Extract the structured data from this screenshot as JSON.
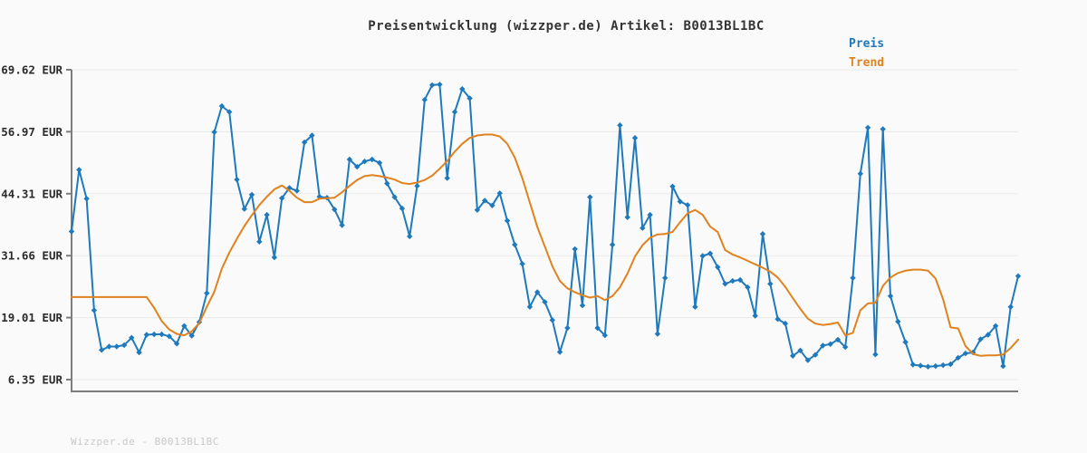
{
  "header": {
    "title": "Preisentwicklung (wizzper.de) Artikel: B0013BL1BC"
  },
  "legend": {
    "position": "top-right",
    "items": [
      {
        "label": "Preis",
        "color": "#1e79bd"
      },
      {
        "label": "Trend",
        "color": "#e0821e"
      }
    ]
  },
  "footer": {
    "watermark": "Wizzper.de - B0013BL1BC"
  },
  "colors": {
    "background": "#fafafa",
    "grid": "#e9e9e9",
    "axis": "#7d7d7d",
    "title_text": "#333333",
    "tick_text": "#2b2b2b",
    "watermark_text": "#c9c9c9"
  },
  "chart_data": {
    "type": "line",
    "title": "Preisentwicklung (wizzper.de) Artikel: B0013BL1BC",
    "xlabel": "",
    "ylabel": "EUR",
    "currency": "EUR",
    "grid": true,
    "ylim": [
      6.35,
      69.62
    ],
    "y_ticks": [
      {
        "label": "69.62 EUR",
        "value": 69.62
      },
      {
        "label": "56.97 EUR",
        "value": 56.97
      },
      {
        "label": "44.31 EUR",
        "value": 44.31
      },
      {
        "label": "31.66 EUR",
        "value": 31.66
      },
      {
        "label": "19.01 EUR",
        "value": 19.01
      },
      {
        "label": "6.35 EUR",
        "value": 6.35
      }
    ],
    "series": [
      {
        "name": "Preis",
        "color": "#1e79bd",
        "marker": "diamond",
        "values": [
          36.6,
          49.2,
          43.3,
          20.5,
          12.4,
          13.1,
          13.1,
          13.4,
          14.9,
          11.9,
          15.5,
          15.6,
          15.6,
          15.2,
          13.7,
          17.3,
          15.3,
          18.1,
          24.0,
          56.9,
          62.2,
          61.0,
          47.2,
          41.2,
          44.1,
          34.5,
          40.0,
          31.3,
          43.4,
          45.5,
          44.9,
          54.8,
          56.2,
          43.7,
          43.5,
          41.1,
          37.9,
          51.3,
          49.8,
          50.9,
          51.3,
          50.6,
          46.4,
          43.6,
          41.3,
          35.6,
          45.9,
          63.5,
          66.5,
          66.6,
          47.5,
          61.0,
          65.7,
          63.8,
          41.0,
          42.9,
          41.9,
          44.4,
          38.8,
          33.9,
          30.0,
          21.2,
          24.2,
          22.2,
          18.5,
          12.0,
          16.9,
          33.0,
          21.5,
          43.6,
          16.9,
          15.4,
          33.9,
          58.3,
          39.5,
          55.7,
          37.3,
          40.0,
          15.7,
          27.1,
          45.8,
          42.7,
          42.0,
          21.2,
          31.6,
          32.1,
          29.3,
          25.9,
          26.5,
          26.7,
          25.2,
          19.4,
          36.1,
          25.9,
          18.7,
          17.8,
          11.2,
          12.3,
          10.3,
          11.4,
          13.3,
          13.6,
          14.5,
          13.0,
          27.1,
          48.4,
          57.8,
          11.5,
          57.5,
          23.4,
          18.2,
          14.0,
          9.4,
          9.2,
          9.0,
          9.1,
          9.3,
          9.5,
          10.8,
          11.7,
          11.9,
          14.6,
          15.5,
          17.3,
          9.1,
          21.2,
          27.5
        ]
      },
      {
        "name": "Trend",
        "color": "#e0821e",
        "marker": "none",
        "values": [
          23.2,
          23.2,
          23.2,
          23.2,
          23.2,
          23.2,
          23.2,
          23.2,
          23.2,
          23.2,
          23.2,
          21.0,
          18.3,
          16.6,
          15.7,
          15.4,
          16.2,
          17.9,
          21.2,
          24.3,
          29.0,
          32.3,
          35.1,
          37.7,
          39.9,
          42.0,
          43.7,
          45.2,
          46.0,
          44.9,
          43.5,
          42.6,
          42.6,
          43.3,
          43.4,
          43.5,
          44.6,
          45.9,
          47.1,
          47.9,
          48.1,
          47.9,
          47.6,
          47.2,
          46.5,
          46.3,
          46.6,
          47.1,
          48.0,
          49.4,
          51.0,
          52.9,
          54.5,
          55.7,
          56.2,
          56.4,
          56.4,
          56.0,
          54.5,
          51.7,
          47.5,
          42.5,
          37.5,
          33.5,
          29.5,
          26.5,
          25.0,
          24.2,
          23.6,
          23.1,
          23.4,
          22.6,
          23.4,
          25.2,
          28.0,
          31.5,
          33.8,
          35.3,
          36.0,
          36.1,
          36.5,
          38.5,
          40.3,
          41.0,
          40.0,
          37.6,
          36.5,
          32.8,
          31.9,
          31.3,
          30.6,
          29.9,
          29.2,
          28.4,
          27.2,
          25.3,
          23.0,
          20.8,
          18.8,
          17.8,
          17.5,
          17.7,
          18.0,
          15.4,
          15.9,
          20.5,
          21.9,
          22.0,
          25.5,
          27.2,
          28.1,
          28.6,
          28.8,
          28.8,
          28.6,
          27.0,
          22.8,
          17.0,
          16.8,
          13.2,
          11.6,
          11.2,
          11.3,
          11.3,
          11.5,
          12.8,
          14.5
        ]
      }
    ]
  }
}
